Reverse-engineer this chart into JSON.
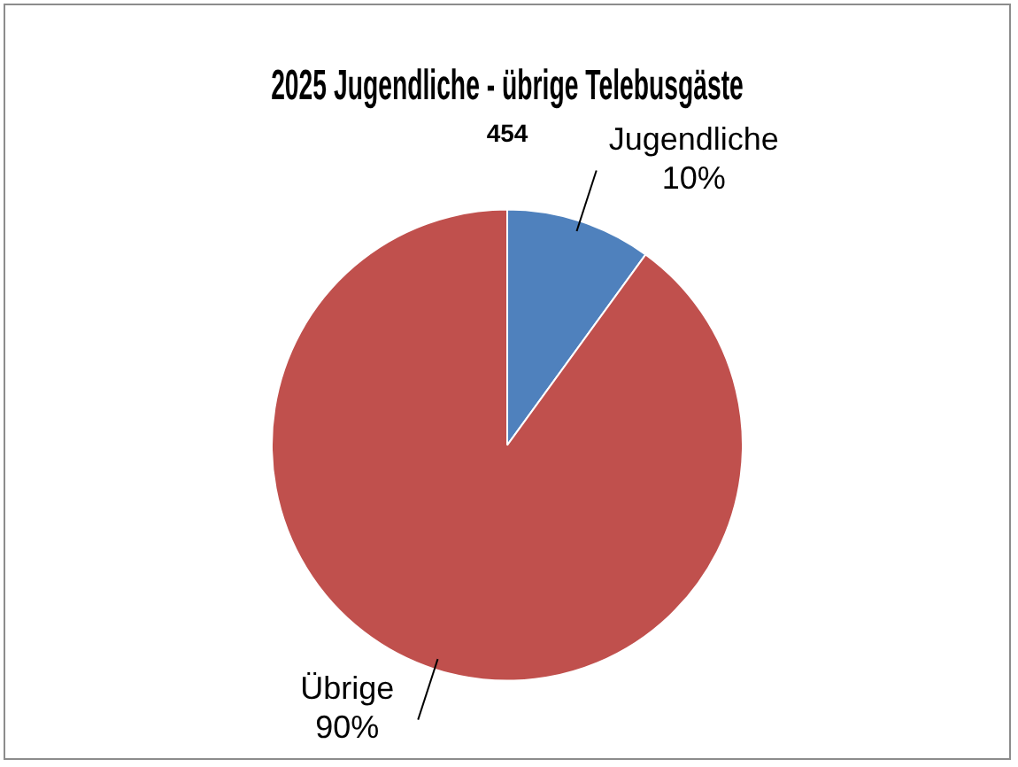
{
  "chart_data": {
    "type": "pie",
    "title": "2025 Jugendliche - übrige Telebusgäste",
    "subtitle": "454",
    "categories": [
      "Jugendliche",
      "Übrige"
    ],
    "values": [
      10,
      90
    ],
    "colors": [
      "#4f81bd",
      "#c0504d"
    ],
    "value_labels": [
      "10%",
      "90%"
    ],
    "legend": false
  }
}
